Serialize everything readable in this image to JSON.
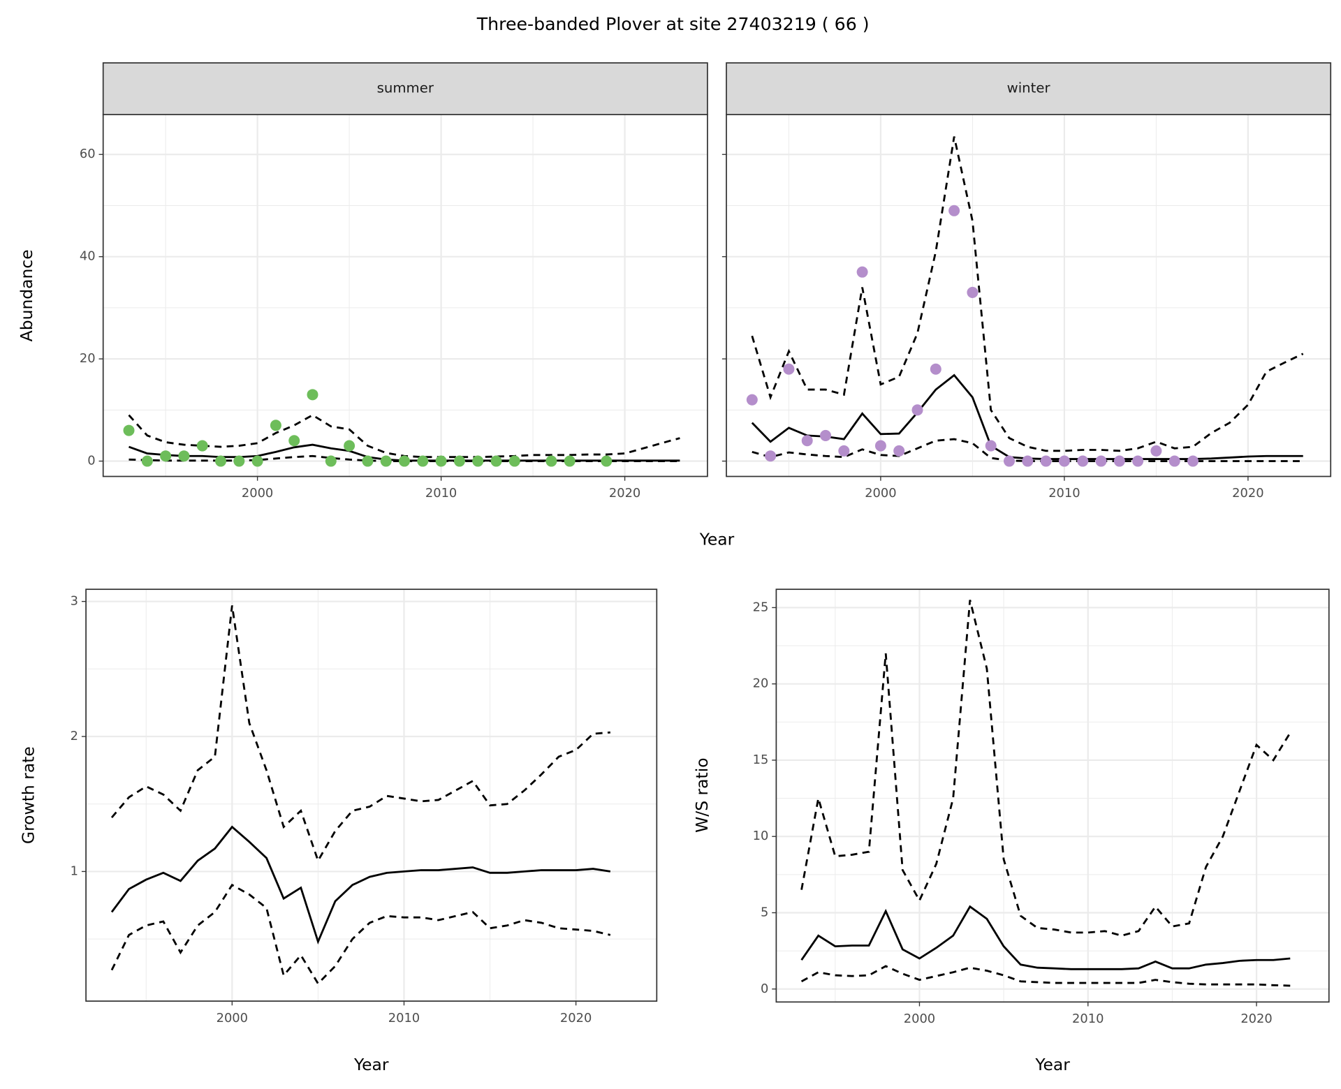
{
  "title": "Three-banded Plover at site 27403219 ( 66 )",
  "facet_xlabel": "Year",
  "chart_data": [
    {
      "type": "line",
      "strip": "summer",
      "ylabel": "Abundance",
      "xlim": [
        1991.6,
        2024.5
      ],
      "ylim": [
        -3,
        67.8
      ],
      "xticks": [
        2000,
        2010,
        2020
      ],
      "yticks": [
        0,
        20,
        40,
        60
      ],
      "grid": true,
      "x": [
        1993,
        1994,
        1995,
        1996,
        1997,
        1998,
        1999,
        2000,
        2001,
        2002,
        2003,
        2004,
        2005,
        2006,
        2007,
        2008,
        2009,
        2010,
        2011,
        2012,
        2013,
        2014,
        2015,
        2016,
        2017,
        2018,
        2019,
        2020,
        2021,
        2022,
        2023
      ],
      "series": [
        {
          "style": "dashed",
          "color": "#000000",
          "values": [
            9,
            5,
            3.7,
            3.2,
            3,
            2.8,
            3,
            3.5,
            5.5,
            7,
            9,
            6.8,
            6.2,
            3,
            1.6,
            1,
            0.8,
            0.8,
            0.8,
            0.8,
            0.9,
            1,
            1.2,
            1.2,
            1.2,
            1.3,
            1.3,
            1.5,
            2.5,
            3.5,
            4.5
          ]
        },
        {
          "style": "solid",
          "color": "#000000",
          "values": [
            2.8,
            1.5,
            1.2,
            1,
            1,
            0.8,
            0.8,
            1,
            1.8,
            2.7,
            3.2,
            2.5,
            2,
            0.8,
            0.3,
            0.1,
            0.1,
            0.1,
            0.1,
            0.1,
            0.1,
            0.1,
            0.1,
            0.1,
            0.1,
            0.1,
            0.1,
            0.1,
            0.1,
            0.1,
            0.1
          ]
        },
        {
          "style": "dashed",
          "color": "#000000",
          "values": [
            0.3,
            0.2,
            0.1,
            0.1,
            0.1,
            0.1,
            0.1,
            0.2,
            0.5,
            0.8,
            1,
            0.6,
            0.3,
            0.1,
            0,
            0,
            0,
            0,
            0,
            0,
            0,
            0,
            0,
            0,
            0,
            0,
            0,
            0,
            0,
            0,
            0
          ]
        },
        {
          "style": "points",
          "color": "#6dbd5a",
          "values": [
            6,
            0,
            1,
            1,
            3,
            0,
            0,
            0,
            7,
            4,
            13,
            0,
            3,
            0,
            0,
            0,
            0,
            0,
            0,
            0,
            0,
            0,
            null,
            0,
            0,
            null,
            0,
            null,
            null,
            null,
            null
          ]
        }
      ]
    },
    {
      "type": "line",
      "strip": "winter",
      "xlim": [
        1991.6,
        2024.5
      ],
      "ylim": [
        -3,
        67.8
      ],
      "xticks": [
        2000,
        2010,
        2020
      ],
      "yticks": [
        0,
        20,
        40,
        60
      ],
      "grid": true,
      "x": [
        1993,
        1994,
        1995,
        1996,
        1997,
        1998,
        1999,
        2000,
        2001,
        2002,
        2003,
        2004,
        2005,
        2006,
        2007,
        2008,
        2009,
        2010,
        2011,
        2012,
        2013,
        2014,
        2015,
        2016,
        2017,
        2018,
        2019,
        2020,
        2021,
        2022,
        2023
      ],
      "series": [
        {
          "style": "dashed",
          "color": "#000000",
          "values": [
            24.5,
            12.5,
            21.5,
            14,
            14,
            13,
            34,
            15,
            16.5,
            25,
            41,
            63.5,
            47,
            10,
            4.5,
            2.8,
            2,
            2,
            2.2,
            2.2,
            2,
            2.5,
            3.8,
            2.5,
            2.8,
            5.5,
            7.5,
            11,
            17.5,
            19.3,
            21
          ]
        },
        {
          "style": "solid",
          "color": "#000000",
          "values": [
            7.5,
            3.8,
            6.5,
            5,
            4.8,
            4.3,
            9.3,
            5.3,
            5.4,
            9.5,
            14,
            16.8,
            12.5,
            3,
            0.8,
            0.5,
            0.4,
            0.4,
            0.4,
            0.4,
            0.4,
            0.4,
            0.4,
            0.4,
            0.4,
            0.5,
            0.7,
            0.9,
            1,
            1,
            1
          ]
        },
        {
          "style": "dashed",
          "color": "#000000",
          "values": [
            1.8,
            0.8,
            1.7,
            1.3,
            1,
            0.8,
            2.3,
            1.2,
            1,
            2.5,
            4,
            4.3,
            3.5,
            0.6,
            0.1,
            0,
            0,
            0,
            0,
            0,
            0,
            0,
            0,
            0,
            0,
            0,
            0,
            0,
            0,
            0,
            0
          ]
        },
        {
          "style": "points",
          "color": "#b48ecb",
          "values": [
            12,
            1,
            18,
            4,
            5,
            2,
            37,
            3,
            2,
            10,
            18,
            49,
            33,
            3,
            0,
            0,
            0,
            0,
            0,
            0,
            0,
            0,
            2,
            0,
            0,
            null,
            null,
            null,
            null,
            null,
            null
          ]
        }
      ]
    },
    {
      "type": "line",
      "ylabel": "Growth rate",
      "xlabel": "Year",
      "xlim": [
        1991.5,
        2024.7
      ],
      "ylim": [
        0.04,
        3.09
      ],
      "xticks": [
        2000,
        2010,
        2020
      ],
      "yticks": [
        1,
        2,
        3
      ],
      "grid": true,
      "x": [
        1993,
        1994,
        1995,
        1996,
        1997,
        1998,
        1999,
        2000,
        2001,
        2002,
        2003,
        2004,
        2005,
        2006,
        2007,
        2008,
        2009,
        2010,
        2011,
        2012,
        2013,
        2014,
        2015,
        2016,
        2017,
        2018,
        2019,
        2020,
        2021,
        2022
      ],
      "series": [
        {
          "style": "dashed",
          "color": "#000000",
          "values": [
            1.4,
            1.55,
            1.63,
            1.57,
            1.45,
            1.75,
            1.85,
            2.97,
            2.1,
            1.75,
            1.33,
            1.45,
            1.08,
            1.3,
            1.45,
            1.48,
            1.56,
            1.54,
            1.52,
            1.53,
            1.6,
            1.67,
            1.49,
            1.5,
            1.6,
            1.72,
            1.85,
            1.9,
            2.02,
            2.03
          ]
        },
        {
          "style": "solid",
          "color": "#000000",
          "values": [
            0.7,
            0.87,
            0.94,
            0.99,
            0.93,
            1.08,
            1.17,
            1.33,
            1.22,
            1.1,
            0.8,
            0.88,
            0.48,
            0.78,
            0.9,
            0.96,
            0.99,
            1,
            1.01,
            1.01,
            1.02,
            1.03,
            0.99,
            0.99,
            1,
            1.01,
            1.01,
            1.01,
            1.02,
            1
          ]
        },
        {
          "style": "dashed",
          "color": "#000000",
          "values": [
            0.27,
            0.53,
            0.6,
            0.63,
            0.4,
            0.6,
            0.7,
            0.9,
            0.83,
            0.73,
            0.23,
            0.38,
            0.17,
            0.3,
            0.5,
            0.62,
            0.67,
            0.66,
            0.66,
            0.64,
            0.67,
            0.7,
            0.58,
            0.6,
            0.64,
            0.62,
            0.58,
            0.57,
            0.56,
            0.53
          ]
        }
      ]
    },
    {
      "type": "line",
      "ylabel": "W/S ratio",
      "xlabel": "Year",
      "xlim": [
        1991.5,
        2024.3
      ],
      "ylim": [
        -0.85,
        26.2
      ],
      "xticks": [
        2000,
        2010,
        2020
      ],
      "yticks": [
        0,
        5,
        10,
        15,
        20,
        25
      ],
      "grid": true,
      "x": [
        1993,
        1994,
        1995,
        1996,
        1997,
        1998,
        1999,
        2000,
        2001,
        2002,
        2003,
        2004,
        2005,
        2006,
        2007,
        2008,
        2009,
        2010,
        2011,
        2012,
        2013,
        2014,
        2015,
        2016,
        2017,
        2018,
        2019,
        2020,
        2021,
        2022
      ],
      "series": [
        {
          "style": "dashed",
          "color": "#000000",
          "values": [
            6.5,
            12.5,
            8.7,
            8.8,
            9,
            22,
            7.8,
            5.8,
            8.2,
            12.5,
            25.5,
            21,
            8.5,
            4.8,
            4,
            3.9,
            3.7,
            3.7,
            3.8,
            3.5,
            3.8,
            5.4,
            4.1,
            4.3,
            8,
            10,
            13,
            16,
            15,
            16.8
          ]
        },
        {
          "style": "solid",
          "color": "#000000",
          "values": [
            1.9,
            3.5,
            2.8,
            2.85,
            2.85,
            5.1,
            2.6,
            2,
            2.7,
            3.5,
            5.4,
            4.6,
            2.8,
            1.6,
            1.4,
            1.35,
            1.3,
            1.3,
            1.3,
            1.3,
            1.35,
            1.8,
            1.35,
            1.35,
            1.6,
            1.7,
            1.85,
            1.9,
            1.9,
            2
          ]
        },
        {
          "style": "dashed",
          "color": "#000000",
          "values": [
            0.5,
            1.1,
            0.9,
            0.85,
            0.9,
            1.5,
            1,
            0.6,
            0.85,
            1.1,
            1.4,
            1.2,
            0.9,
            0.5,
            0.45,
            0.4,
            0.4,
            0.4,
            0.4,
            0.4,
            0.4,
            0.6,
            0.45,
            0.35,
            0.3,
            0.3,
            0.3,
            0.3,
            0.25,
            0.22
          ]
        }
      ]
    }
  ]
}
